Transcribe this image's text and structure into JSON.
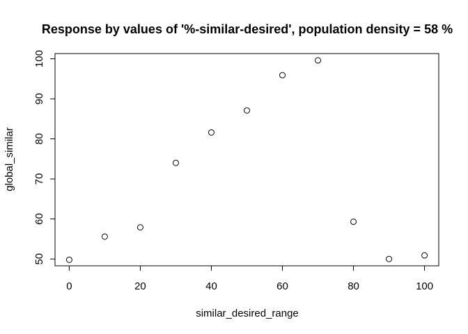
{
  "chart_data": {
    "type": "scatter",
    "title": "Response by values of '%-similar-desired', population density = 58 %",
    "xlabel": "similar_desired_range",
    "ylabel": "global_similar",
    "x": [
      0,
      10,
      20,
      30,
      40,
      50,
      60,
      70,
      80,
      90,
      100
    ],
    "y": [
      49.8,
      55.6,
      57.9,
      74.0,
      81.6,
      87.1,
      95.9,
      99.6,
      59.3,
      50.0,
      50.9
    ],
    "xlim": [
      -4,
      104
    ],
    "ylim": [
      48.3,
      101.3
    ],
    "xticks": [
      "0",
      "20",
      "40",
      "60",
      "80",
      "100"
    ],
    "yticks": [
      "50",
      "60",
      "70",
      "80",
      "90",
      "100"
    ],
    "grid": false,
    "marker": "open-circle",
    "point_color": "#000000"
  }
}
